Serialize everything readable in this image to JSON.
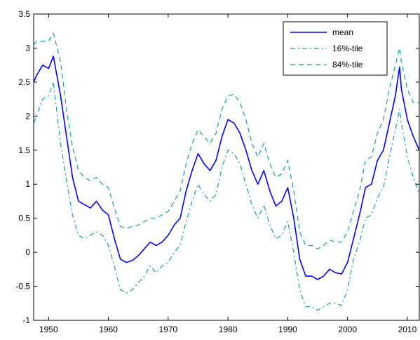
{
  "chart_data": {
    "type": "line",
    "title": "",
    "xlabel": "",
    "ylabel": "",
    "xlim": [
      1947.5,
      2012
    ],
    "ylim": [
      -1,
      3.5
    ],
    "x_ticks": [
      1950,
      1960,
      1970,
      1980,
      1990,
      2000,
      2010
    ],
    "x_tick_labels": [
      "1950",
      "1960",
      "1970",
      "1980",
      "1990",
      "2000",
      "2010"
    ],
    "y_ticks": [
      -1,
      -0.5,
      0,
      0.5,
      1,
      1.5,
      2,
      2.5,
      3,
      3.5
    ],
    "y_tick_labels": [
      "-1",
      "-0.5",
      "0",
      "0.5",
      "1",
      "1.5",
      "2",
      "2.5",
      "3",
      "3.5"
    ],
    "grid": false,
    "legend_position": "top-right",
    "series": [
      {
        "name": "mean",
        "color": "#0000ff",
        "dash": "solid",
        "x": [
          1947.5,
          1948,
          1949,
          1950,
          1950.8,
          1952,
          1953,
          1954,
          1955,
          1956,
          1957,
          1958,
          1959,
          1960,
          1961,
          1962,
          1963,
          1964,
          1965,
          1966,
          1967,
          1968,
          1969,
          1970,
          1971,
          1972,
          1973,
          1974,
          1975,
          1976,
          1977,
          1978,
          1979,
          1980,
          1981,
          1982,
          1983,
          1984,
          1985,
          1986,
          1987,
          1988,
          1989,
          1990,
          1991,
          1992,
          1993,
          1994,
          1995,
          1996,
          1997,
          1998,
          1999,
          2000,
          2001,
          2002,
          2003,
          2004,
          2005,
          2006,
          2007,
          2008,
          2008.7,
          2009,
          2010,
          2011,
          2012
        ],
        "y": [
          2.5,
          2.6,
          2.75,
          2.7,
          2.88,
          2.3,
          1.7,
          1.1,
          0.75,
          0.7,
          0.65,
          0.75,
          0.62,
          0.55,
          0.2,
          -0.1,
          -0.15,
          -0.12,
          -0.05,
          0.05,
          0.15,
          0.1,
          0.15,
          0.25,
          0.4,
          0.5,
          0.9,
          1.2,
          1.45,
          1.3,
          1.2,
          1.35,
          1.7,
          1.95,
          1.9,
          1.75,
          1.5,
          1.2,
          1.0,
          1.2,
          0.9,
          0.68,
          0.75,
          0.95,
          0.5,
          -0.1,
          -0.35,
          -0.35,
          -0.4,
          -0.35,
          -0.25,
          -0.3,
          -0.32,
          -0.15,
          0.2,
          0.55,
          0.95,
          1.0,
          1.35,
          1.5,
          1.9,
          2.3,
          2.72,
          2.4,
          1.95,
          1.7,
          1.5
        ]
      },
      {
        "name": "16%-tile",
        "color": "#1a9c9c",
        "dash": "dashdot",
        "x": [
          1947.5,
          1948,
          1949,
          1950,
          1950.8,
          1952,
          1953,
          1954,
          1955,
          1956,
          1957,
          1958,
          1959,
          1960,
          1961,
          1962,
          1963,
          1964,
          1965,
          1966,
          1967,
          1968,
          1969,
          1970,
          1971,
          1972,
          1973,
          1974,
          1975,
          1976,
          1977,
          1978,
          1979,
          1980,
          1981,
          1982,
          1983,
          1984,
          1985,
          1986,
          1987,
          1988,
          1989,
          1990,
          1991,
          1992,
          1993,
          1994,
          1995,
          1996,
          1997,
          1998,
          1999,
          2000,
          2001,
          2002,
          2003,
          2004,
          2005,
          2006,
          2007,
          2008,
          2008.7,
          2009,
          2010,
          2011,
          2012
        ],
        "y": [
          1.9,
          2.0,
          2.25,
          2.3,
          2.5,
          1.6,
          1.05,
          0.55,
          0.25,
          0.2,
          0.25,
          0.3,
          0.25,
          0.1,
          -0.2,
          -0.55,
          -0.6,
          -0.55,
          -0.45,
          -0.35,
          -0.2,
          -0.3,
          -0.2,
          -0.15,
          0.0,
          0.1,
          0.45,
          0.75,
          1.0,
          0.85,
          0.75,
          0.85,
          1.25,
          1.5,
          1.45,
          1.3,
          1.0,
          0.7,
          0.5,
          0.7,
          0.4,
          0.2,
          0.25,
          0.45,
          0.0,
          -0.55,
          -0.8,
          -0.8,
          -0.85,
          -0.8,
          -0.75,
          -0.75,
          -0.78,
          -0.55,
          -0.1,
          0.15,
          0.5,
          0.55,
          0.8,
          0.95,
          1.4,
          1.8,
          2.1,
          1.9,
          1.4,
          1.1,
          0.85
        ]
      },
      {
        "name": "84%-tile",
        "color": "#1a9c9c",
        "dash": "dashed",
        "x": [
          1947.5,
          1948,
          1949,
          1950,
          1950.8,
          1952,
          1953,
          1954,
          1955,
          1956,
          1957,
          1958,
          1959,
          1960,
          1961,
          1962,
          1963,
          1964,
          1965,
          1966,
          1967,
          1968,
          1969,
          1970,
          1971,
          1972,
          1973,
          1974,
          1975,
          1976,
          1977,
          1978,
          1979,
          1980,
          1981,
          1982,
          1983,
          1984,
          1985,
          1986,
          1987,
          1988,
          1989,
          1990,
          1991,
          1992,
          1993,
          1994,
          1995,
          1996,
          1997,
          1998,
          1999,
          2000,
          2001,
          2002,
          2003,
          2004,
          2005,
          2006,
          2007,
          2008,
          2008.7,
          2009,
          2010,
          2011,
          2012
        ],
        "y": [
          3.05,
          3.1,
          3.1,
          3.1,
          3.22,
          2.8,
          2.1,
          1.55,
          1.2,
          1.1,
          1.05,
          1.1,
          1.0,
          0.95,
          0.65,
          0.38,
          0.35,
          0.38,
          0.4,
          0.45,
          0.5,
          0.5,
          0.55,
          0.6,
          0.75,
          0.9,
          1.3,
          1.6,
          1.8,
          1.7,
          1.6,
          1.75,
          2.1,
          2.3,
          2.32,
          2.2,
          1.95,
          1.6,
          1.4,
          1.6,
          1.3,
          1.1,
          1.15,
          1.35,
          0.9,
          0.3,
          0.1,
          0.1,
          0.05,
          0.1,
          0.18,
          0.15,
          0.15,
          0.3,
          0.6,
          0.9,
          1.35,
          1.4,
          1.75,
          1.95,
          2.4,
          2.75,
          3.0,
          2.8,
          2.4,
          2.2,
          2.2
        ]
      }
    ]
  }
}
